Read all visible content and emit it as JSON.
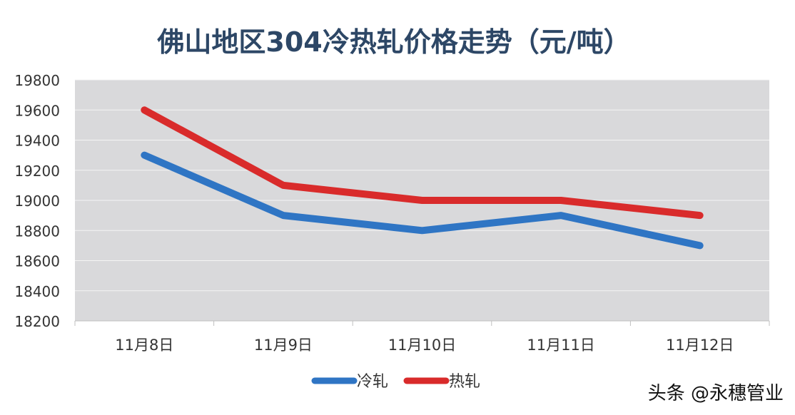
{
  "chart_data": {
    "type": "line",
    "title": "佛山地区304冷热轧价格走势（元/吨）",
    "categories": [
      "11月8日",
      "11月9日",
      "11月10日",
      "11月11日",
      "11月12日"
    ],
    "series": [
      {
        "name": "冷轧",
        "values": [
          19300,
          18900,
          18800,
          18900,
          18700
        ],
        "color": "#2f75c4"
      },
      {
        "name": "热轧",
        "values": [
          19600,
          19100,
          19000,
          19000,
          18900
        ],
        "color": "#d92b2b"
      }
    ],
    "ylim": [
      18200,
      19800
    ],
    "yticks": [
      18200,
      18400,
      18600,
      18800,
      19000,
      19200,
      19400,
      19600,
      19800
    ],
    "grid": true,
    "plot_background": "#d9d9db",
    "legend_position": "bottom"
  },
  "watermark": "头条 @永穗管业"
}
